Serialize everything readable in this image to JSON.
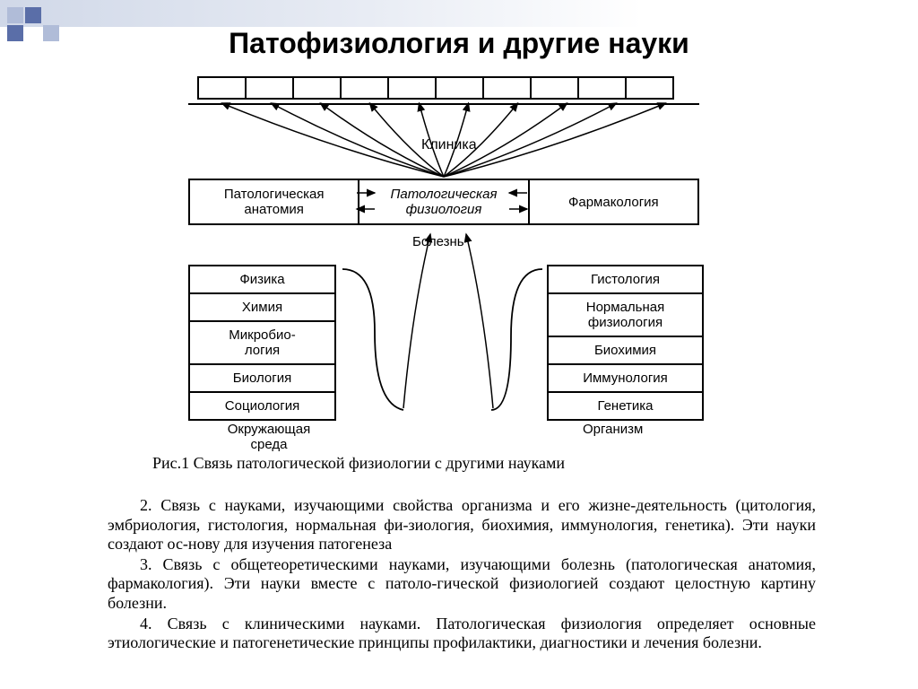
{
  "title": "Патофизиология и другие науки",
  "diagram": {
    "clinic_label": "Клиника",
    "clinic_cell_count": 10,
    "mid_row": {
      "left": "Патологическая анатомия",
      "center": "Патологическая физиология",
      "right": "Фармакология"
    },
    "disease_label": "Болезнь",
    "left_stack": {
      "items": [
        "Физика",
        "Химия",
        "Микробио-\nлогия",
        "Биология",
        "Социология"
      ],
      "label": "Окружающая среда"
    },
    "right_stack": {
      "items": [
        "Гистология",
        "Нормальная физиология",
        "Биохимия",
        "Иммунология",
        "Генетика"
      ],
      "label": "Организм"
    },
    "colors": {
      "border": "#000000",
      "background": "#ffffff",
      "text": "#000000"
    },
    "stroke_width": 2,
    "fan_arrow_count": 10
  },
  "caption": "Рис.1 Связь патологической физиологии с другими науками",
  "paragraphs": [
    "2. Связь с науками, изучающими свойства организма и его жизне-деятельность (цитология, эмбриология, гистология, нормальная фи-зиология, биохимия, иммунология, генетика). Эти науки создают ос-нову для изучения патогенеза",
    "3. Связь с общетеоретическими науками, изучающими болезнь (патологическая анатомия, фармакология). Эти науки вместе с патоло-гической физиологией создают целостную картину болезни.",
    "4. Связь с клиническими науками. Патологическая физиология определяет основные этиологические и патогенетические принципы профилактики, диагностики и лечения болезни."
  ],
  "decor": {
    "gradient_from": "#d0d8e8",
    "gradient_to": "#ffffff",
    "square_light": "#b0bcd8",
    "square_dark": "#5a6ea8"
  }
}
